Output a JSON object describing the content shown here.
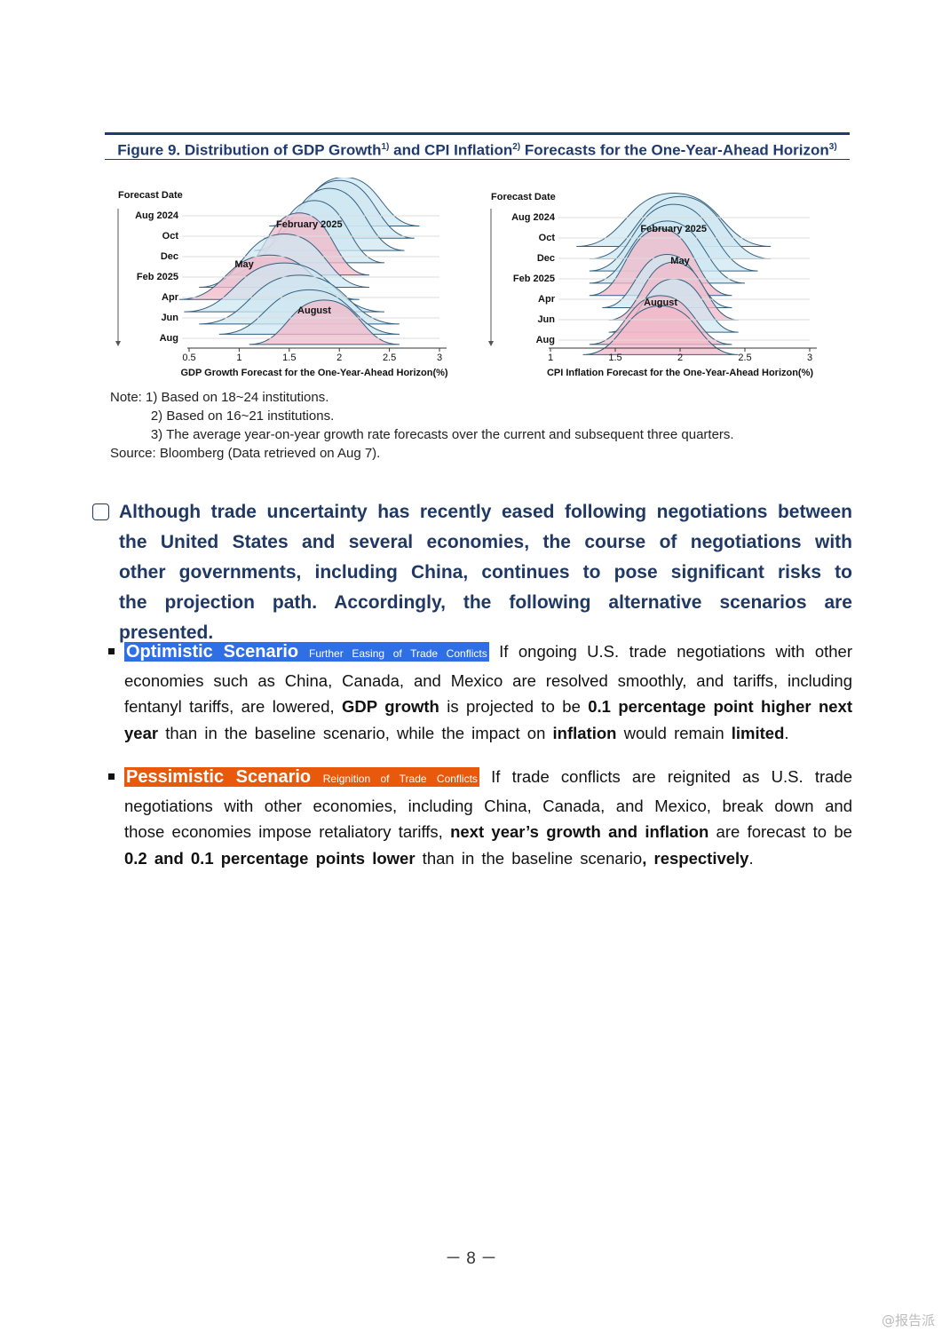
{
  "figure": {
    "title": [
      {
        "text": "Figure 9. Distribution of GDP Growth",
        "sup": false
      },
      {
        "text": "1)",
        "sup": true
      },
      {
        "text": " and CPI Inflation",
        "sup": false
      },
      {
        "text": "2)",
        "sup": true
      },
      {
        "text": " Forecasts for the One-Year-Ahead Horizon",
        "sup": false
      },
      {
        "text": "3)",
        "sup": true
      }
    ],
    "charts": [
      {
        "date_header": "Forecast Date",
        "dates": [
          "Aug 2024",
          "Oct",
          "Dec",
          "Feb 2025",
          "Apr",
          "Jun",
          "Aug"
        ],
        "xlabel": "GDP Growth Forecast for the One-Year-Ahead Horizon(%)",
        "xlim": [
          0.5,
          3
        ],
        "xticks": [
          0.5,
          1,
          1.5,
          2,
          2.5,
          3
        ],
        "annotations": [
          "February 2025",
          "May",
          "August"
        ]
      },
      {
        "date_header": "Forecast Date",
        "dates": [
          "Aug 2024",
          "Oct",
          "Dec",
          "Feb 2025",
          "Apr",
          "Jun",
          "Aug"
        ],
        "xlabel": "CPI Inflation Forecast for the One-Year-Ahead Horizon(%)",
        "xlim": [
          1,
          3
        ],
        "xticks": [
          1,
          1.5,
          2,
          2.5,
          3
        ],
        "annotations": [
          "February 2025",
          "May",
          "August"
        ]
      }
    ],
    "notes": [
      "Note: 1) Based on 18~24 institutions.",
      "           2) Based on 16~21 institutions.",
      "           3) The average year-on-year growth rate forecasts over the current and subsequent three quarters.",
      "Source: Bloomberg (Data retrieved on Aug 7)."
    ]
  },
  "main_point": "Although trade uncertainty has recently eased following negotiations between the United States and several economies, the course of negotiations with other governments, including China, continues to pose significant risks to the projection path. Accordingly, the following alternative scenarios are presented.",
  "scenarios": [
    {
      "label": "Optimistic Scenario",
      "sublabel": "Further Easing of Trade Conflicts",
      "color": "#2f6fe6",
      "segments": [
        {
          "text": " If ongoing U.S. trade negotiations with other economies such as China, Canada, and Mexico are resolved smoothly, and tariffs, including fentanyl tariffs, are lowered, ",
          "bold": false
        },
        {
          "text": "GDP growth",
          "bold": true
        },
        {
          "text": " is projected to be ",
          "bold": false
        },
        {
          "text": "0.1 percentage point higher next year",
          "bold": true
        },
        {
          "text": " than in the baseline scenario, while the impact on ",
          "bold": false
        },
        {
          "text": "inflation",
          "bold": true
        },
        {
          "text": " would remain ",
          "bold": false
        },
        {
          "text": "limited",
          "bold": true
        },
        {
          "text": ".",
          "bold": false
        }
      ]
    },
    {
      "label": "Pessimistic Scenario",
      "sublabel": "Reignition of Trade Conflicts",
      "color": "#e8590c",
      "segments": [
        {
          "text": " If trade conflicts are reignited as U.S. trade negotiations with other economies, including China, Canada, and Mexico, break down and those economies impose retaliatory tariffs, ",
          "bold": false
        },
        {
          "text": "next year’s growth and inflation",
          "bold": true
        },
        {
          "text": " are forecast to be ",
          "bold": false
        },
        {
          "text": "0.2 and 0.1 percentage points lower",
          "bold": true
        },
        {
          "text": " than in the baseline scenario",
          "bold": false
        },
        {
          "text": ", respectively",
          "bold": true
        },
        {
          "text": ".",
          "bold": false
        }
      ]
    }
  ],
  "page_number": "－ 8 －",
  "watermark": "@报告派"
}
